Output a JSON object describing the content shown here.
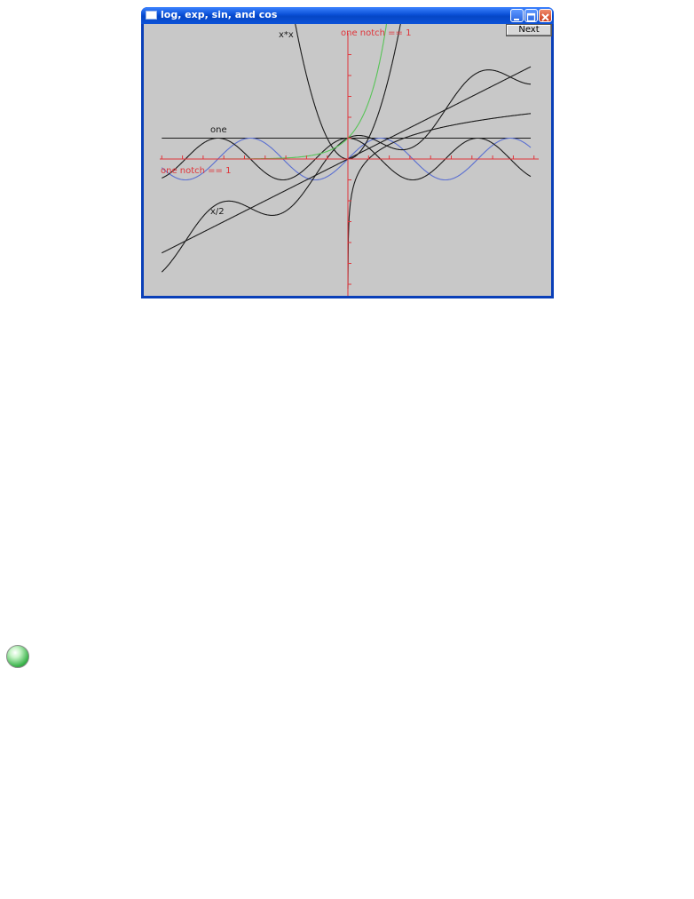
{
  "window": {
    "title": "log, exp, sin, and cos",
    "next_label": "Next"
  },
  "graph": {
    "axis_labels": {
      "y_axis": "one notch == 1",
      "x_axis": "one notch == 1"
    },
    "function_labels": {
      "square": "x*x",
      "one": "one",
      "half": "x/2"
    }
  },
  "colors": {
    "axes": "#e0343a",
    "exp": "#57c457",
    "sin": "#5a6fd1",
    "other": "#1a1a1a",
    "client_bg": "#c8c8c8"
  },
  "icons": {
    "window_icon": "app-window-icon",
    "minimize": "minimize-icon",
    "maximize": "maximize-icon",
    "close": "close-icon",
    "decoration": "green-globe-icon"
  }
}
